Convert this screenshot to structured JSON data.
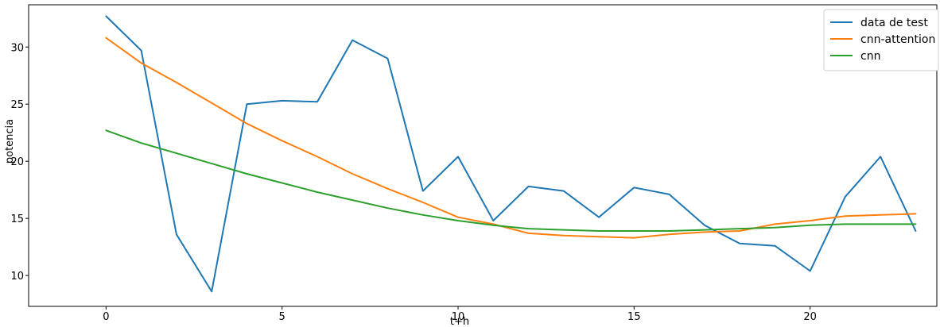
{
  "chart_data": {
    "type": "line",
    "title": "",
    "xlabel": "t+h",
    "ylabel": "potencia",
    "xlim": [
      -2.2,
      23.6
    ],
    "ylim": [
      7.3,
      33.7
    ],
    "xticks": [
      0,
      5,
      10,
      15,
      20
    ],
    "yticks": [
      10,
      15,
      20,
      25,
      30
    ],
    "grid": false,
    "legend_position": "top-right",
    "x": [
      0,
      1,
      2,
      3,
      4,
      5,
      6,
      7,
      8,
      9,
      10,
      11,
      12,
      13,
      14,
      15,
      16,
      17,
      18,
      19,
      20,
      21,
      22,
      23
    ],
    "series": [
      {
        "name": "data de test",
        "color": "#1f77b4",
        "values": [
          32.7,
          29.7,
          13.6,
          8.6,
          25.0,
          25.3,
          25.2,
          30.6,
          29.0,
          17.4,
          20.4,
          14.8,
          17.8,
          17.4,
          15.1,
          17.7,
          17.1,
          14.4,
          12.8,
          12.6,
          10.4,
          16.9,
          20.4,
          13.9
        ]
      },
      {
        "name": "cnn-attention",
        "color": "#ff7f0e",
        "values": [
          30.8,
          28.6,
          26.9,
          25.1,
          23.3,
          21.8,
          20.4,
          18.9,
          17.6,
          16.4,
          15.1,
          14.5,
          13.7,
          13.5,
          13.4,
          13.3,
          13.6,
          13.8,
          13.9,
          14.5,
          14.8,
          15.2,
          15.3,
          15.4
        ]
      },
      {
        "name": "cnn",
        "color": "#2ca02c",
        "values": [
          22.7,
          21.6,
          20.7,
          19.8,
          18.9,
          18.1,
          17.3,
          16.6,
          15.9,
          15.3,
          14.8,
          14.4,
          14.1,
          14.0,
          13.9,
          13.9,
          13.9,
          14.0,
          14.1,
          14.2,
          14.4,
          14.5,
          14.5,
          14.5
        ]
      }
    ]
  }
}
